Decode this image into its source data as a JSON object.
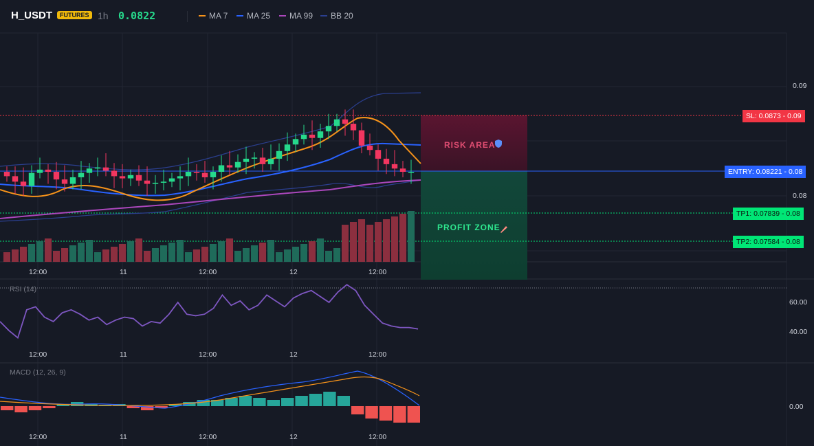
{
  "header": {
    "symbol": "H_USDT",
    "badge": "FUTURES",
    "timeframe": "1h",
    "last_price": "0.0822"
  },
  "legend": [
    {
      "label": "MA 7",
      "color": "#f7931a"
    },
    {
      "label": "MA 25",
      "color": "#2962ff"
    },
    {
      "label": "MA 99",
      "color": "#ab47bc"
    },
    {
      "label": "BB 20",
      "color": "#2b3f8f"
    }
  ],
  "price_axis": {
    "upper": "0.09",
    "lower": "0.08"
  },
  "levels": {
    "sl": {
      "label": "SL: 0.0873",
      "axis": "0.09",
      "color": "#f23645",
      "value": 0.0873
    },
    "entry": {
      "label": "ENTRY: 0.08221",
      "axis": "0.08",
      "color": "#2962ff",
      "value": 0.08221
    },
    "tp1": {
      "label": "TP1: 0.07839",
      "axis": "0.08",
      "color": "#00e676",
      "value": 0.07839
    },
    "tp2": {
      "label": "TP2: 0.07584",
      "axis": "0.08",
      "color": "#00e676",
      "value": 0.07584
    }
  },
  "zones": {
    "risk": "RISK AREA",
    "profit": "PROFIT ZONE"
  },
  "time_labels": [
    "12:00",
    "11",
    "12:00",
    "12",
    "12:00"
  ],
  "rsi": {
    "title": "RSI (14)",
    "axis": [
      "60.00",
      "40.00"
    ]
  },
  "macd": {
    "title": "MACD (12, 26, 9)",
    "axis": "0.00"
  },
  "chart_data": {
    "type": "candlestick",
    "ohlc_close": [
      0.0818,
      0.0813,
      0.0809,
      0.0821,
      0.0824,
      0.0822,
      0.0815,
      0.0811,
      0.0817,
      0.0821,
      0.0825,
      0.0826,
      0.0823,
      0.0818,
      0.0816,
      0.0819,
      0.0814,
      0.0811,
      0.0812,
      0.0813,
      0.0816,
      0.0818,
      0.0822,
      0.0821,
      0.0817,
      0.0822,
      0.0828,
      0.0826,
      0.0831,
      0.0834,
      0.0835,
      0.0829,
      0.0834,
      0.0841,
      0.0847,
      0.0852,
      0.0856,
      0.0853,
      0.0859,
      0.0864,
      0.087,
      0.0866,
      0.086,
      0.0846,
      0.0842,
      0.0834,
      0.0829,
      0.0825,
      0.0822,
      0.0822
    ],
    "rsi_values": [
      47,
      41,
      36,
      55,
      57,
      50,
      47,
      53,
      55,
      52,
      48,
      50,
      45,
      48,
      50,
      49,
      44,
      47,
      46,
      52,
      60,
      52,
      51,
      52,
      56,
      65,
      58,
      61,
      55,
      58,
      65,
      61,
      57,
      63,
      66,
      68,
      64,
      60,
      67,
      72,
      68,
      58,
      52,
      46,
      44,
      43,
      43,
      42
    ],
    "macd_hist": [
      -0.0002,
      -0.0003,
      -0.0002,
      -0.0001,
      0.0001,
      0.0002,
      0.0001,
      0.0,
      0.0001,
      -0.0001,
      -0.0002,
      -0.0001,
      0.0001,
      0.0002,
      0.0003,
      0.0003,
      0.0004,
      0.0005,
      0.0004,
      0.0003,
      0.0004,
      0.0005,
      0.0006,
      0.0007,
      0.0005,
      -0.0004,
      -0.0006,
      -0.0007,
      -0.0008,
      -0.0008
    ]
  }
}
